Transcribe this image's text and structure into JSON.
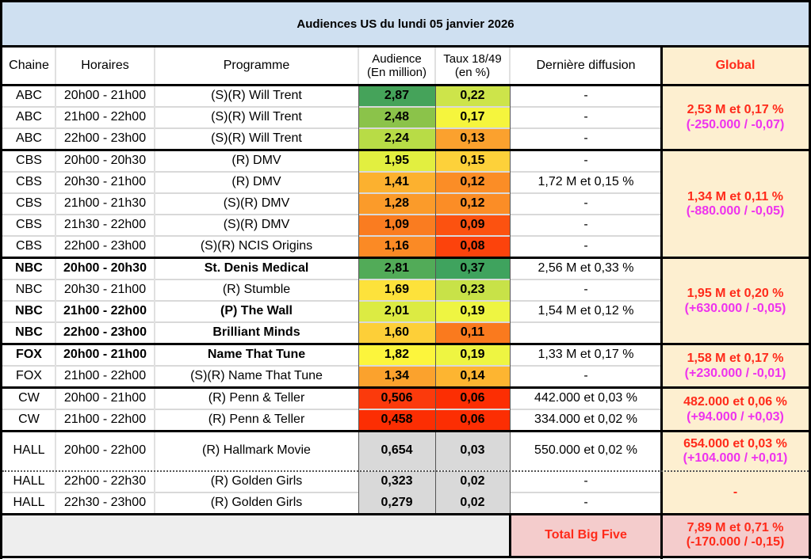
{
  "title": "Audiences US du lundi 05 janvier 2026",
  "headers": {
    "chaine": "Chaine",
    "horaires": "Horaires",
    "programme": "Programme",
    "audience_l1": "Audience",
    "audience_l2": "(En million)",
    "taux_l1": "Taux 18/49",
    "taux_l2": "(en %)",
    "derniere": "Dernière diffusion",
    "global": "Global"
  },
  "colors": {
    "title_bg": "#cfe0f1",
    "global_bg": "#fdefd0",
    "total_bg": "#f4cccc",
    "footer_bg": "#eeeeee",
    "hall_bg": "#d9d9d9",
    "global_text": "#ff2a1a",
    "delta_text": "#ee33ee"
  },
  "rows": [
    {
      "chaine": "ABC",
      "horaires": "20h00 - 21h00",
      "programme": "(S)(R) Will Trent",
      "audience": "2,87",
      "taux": "0,22",
      "derniere": "-",
      "bold": false,
      "aud_color": "#45a35a",
      "taux_color": "#cde44a"
    },
    {
      "chaine": "ABC",
      "horaires": "21h00 - 22h00",
      "programme": "(S)(R) Will Trent",
      "audience": "2,48",
      "taux": "0,17",
      "derniere": "-",
      "bold": false,
      "aud_color": "#8bc34a",
      "taux_color": "#f5f53d"
    },
    {
      "chaine": "ABC",
      "horaires": "22h00 - 23h00",
      "programme": "(S)(R) Will Trent",
      "audience": "2,24",
      "taux": "0,13",
      "derniere": "-",
      "bold": false,
      "aud_color": "#b8dc46",
      "taux_color": "#fba12e"
    },
    {
      "chaine": "CBS",
      "horaires": "20h00 - 20h30",
      "programme": "(R) DMV",
      "audience": "1,95",
      "taux": "0,15",
      "derniere": "-",
      "bold": false,
      "aud_color": "#e2ef40",
      "taux_color": "#fdd13a"
    },
    {
      "chaine": "CBS",
      "horaires": "20h30 - 21h00",
      "programme": "(R) DMV",
      "audience": "1,41",
      "taux": "0,12",
      "derniere": "1,72 M et 0,15 %",
      "bold": false,
      "aud_color": "#fcb12f",
      "taux_color": "#fb8d26"
    },
    {
      "chaine": "CBS",
      "horaires": "21h00 - 21h30",
      "programme": "(S)(R) DMV",
      "audience": "1,28",
      "taux": "0,12",
      "derniere": "-",
      "bold": false,
      "aud_color": "#fb9b2a",
      "taux_color": "#fb8d26"
    },
    {
      "chaine": "CBS",
      "horaires": "21h30 - 22h00",
      "programme": "(S)(R) DMV",
      "audience": "1,09",
      "taux": "0,09",
      "derniere": "-",
      "bold": false,
      "aud_color": "#fa7c20",
      "taux_color": "#fc5210"
    },
    {
      "chaine": "CBS",
      "horaires": "22h00 - 23h00",
      "programme": "(S)(R) NCIS Origins",
      "audience": "1,16",
      "taux": "0,08",
      "derniere": "-",
      "bold": false,
      "aud_color": "#fb8a25",
      "taux_color": "#fc430c"
    },
    {
      "chaine": "NBC",
      "horaires": "20h00 - 20h30",
      "programme": "St. Denis Medical",
      "audience": "2,81",
      "taux": "0,37",
      "derniere": "2,56 M et 0,33 %",
      "bold": true,
      "aud_color": "#52ab58",
      "taux_color": "#3fa35e"
    },
    {
      "chaine": "NBC",
      "horaires": "20h30 - 21h00",
      "programme": "(R) Stumble",
      "audience": "1,69",
      "taux": "0,23",
      "derniere": "-",
      "bold": false,
      "aud_color": "#fde23b",
      "taux_color": "#c8e248"
    },
    {
      "chaine": "NBC",
      "horaires": "21h00 - 22h00",
      "programme": "(P) The Wall",
      "audience": "2,01",
      "taux": "0,19",
      "derniere": "1,54 M et 0,12 %",
      "bold": true,
      "aud_color": "#dceb43",
      "taux_color": "#eef542"
    },
    {
      "chaine": "NBC",
      "horaires": "22h00 - 23h00",
      "programme": "Brilliant Minds",
      "audience": "1,60",
      "taux": "0,11",
      "derniere": "",
      "bold": true,
      "aud_color": "#fdcf38",
      "taux_color": "#fa7a1e"
    },
    {
      "chaine": "FOX",
      "horaires": "20h00 - 21h00",
      "programme": "Name That Tune",
      "audience": "1,82",
      "taux": "0,19",
      "derniere": "1,33 M et 0,17 %",
      "bold": true,
      "aud_color": "#fcf53c",
      "taux_color": "#eef542"
    },
    {
      "chaine": "FOX",
      "horaires": "21h00 - 22h00",
      "programme": "(S)(R) Name That Tune",
      "audience": "1,34",
      "taux": "0,14",
      "derniere": "-",
      "bold": false,
      "aud_color": "#fba22d",
      "taux_color": "#fdb531"
    },
    {
      "chaine": "CW",
      "horaires": "20h00 - 21h00",
      "programme": "(R) Penn & Teller",
      "audience": "0,506",
      "taux": "0,06",
      "derniere": "442.000 et 0,03 %",
      "bold": false,
      "aud_color": "#fb3a0c",
      "taux_color": "#fc2e03"
    },
    {
      "chaine": "CW",
      "horaires": "21h00 - 22h00",
      "programme": "(R) Penn & Teller",
      "audience": "0,458",
      "taux": "0,06",
      "derniere": "334.000 et 0,02 %",
      "bold": false,
      "aud_color": "#fc2e03",
      "taux_color": "#fc2e03"
    },
    {
      "chaine": "HALL",
      "horaires": "20h00 - 22h00",
      "programme": "(R) Hallmark Movie",
      "audience": "0,654",
      "taux": "0,03",
      "derniere": "550.000 et 0,02 %",
      "bold": false,
      "aud_color": "#d9d9d9",
      "taux_color": "#d9d9d9"
    },
    {
      "chaine": "HALL",
      "horaires": "22h00 - 22h30",
      "programme": "(R) Golden Girls",
      "audience": "0,323",
      "taux": "0,02",
      "derniere": "-",
      "bold": false,
      "aud_color": "#d9d9d9",
      "taux_color": "#d9d9d9"
    },
    {
      "chaine": "HALL",
      "horaires": "22h30 - 23h00",
      "programme": "(R) Golden Girls",
      "audience": "0,279",
      "taux": "0,02",
      "derniere": "-",
      "bold": false,
      "aud_color": "#d9d9d9",
      "taux_color": "#d9d9d9"
    }
  ],
  "global": [
    {
      "network": "ABC",
      "main": "2,53 M et 0,17 %",
      "delta": "(-250.000 / -0,07)"
    },
    {
      "network": "CBS",
      "main": "1,34 M et 0,11 %",
      "delta": "(-880.000 / -0,05)"
    },
    {
      "network": "NBC",
      "main": "1,95 M et 0,20 %",
      "delta": "(+630.000 / -0,05)"
    },
    {
      "network": "FOX",
      "main": "1,58 M et 0,17 %",
      "delta": "(+230.000 / -0,01)"
    },
    {
      "network": "CW",
      "main": "482.000 et 0,06 %",
      "delta": "(+94.000 / +0,03)"
    },
    {
      "network": "HALL-movie",
      "main": "654.000 et 0,03 %",
      "delta": "(+104.000 / +0,01)"
    },
    {
      "network": "HALL-late",
      "main": "-",
      "delta": ""
    }
  ],
  "total": {
    "label": "Total Big Five",
    "main": "7,89 M et 0,71 %",
    "delta": "(-170.000 / -0,15)"
  }
}
